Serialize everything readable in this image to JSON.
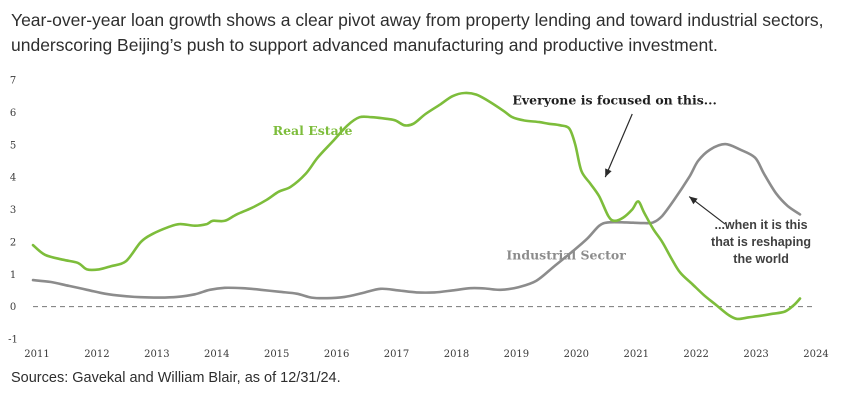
{
  "title_lines": [
    "Year-over-year loan growth shows a clear pivot away from property lending and toward industrial sectors,",
    "underscoring Beijing’s push to support advanced manufacturing and productive investment."
  ],
  "source": "Sources: Gavekal and William Blair, as of 12/31/24.",
  "colors": {
    "real_estate": "#7dbd3b",
    "industrial": "#8c8c8c",
    "zero_line": "#777777"
  },
  "chart_data": {
    "type": "line",
    "xlim": [
      2011,
      2024
    ],
    "ylim": [
      -1,
      7
    ],
    "x_ticks": [
      "2011",
      "2012",
      "2013",
      "2014",
      "2015",
      "2016",
      "2017",
      "2018",
      "2019",
      "2020",
      "2021",
      "2022",
      "2023",
      "2024"
    ],
    "y_ticks": [
      "7",
      "6",
      "5",
      "4",
      "3",
      "2",
      "1",
      "0",
      "-1"
    ],
    "zero_line": "dashed",
    "grid": false,
    "series": [
      {
        "name": "Real Estate",
        "points": [
          [
            2011.0,
            1.9
          ],
          [
            2011.2,
            1.6
          ],
          [
            2011.5,
            1.45
          ],
          [
            2011.75,
            1.35
          ],
          [
            2011.9,
            1.15
          ],
          [
            2012.1,
            1.15
          ],
          [
            2012.3,
            1.25
          ],
          [
            2012.55,
            1.4
          ],
          [
            2012.8,
            2.0
          ],
          [
            2013.0,
            2.25
          ],
          [
            2013.25,
            2.45
          ],
          [
            2013.45,
            2.55
          ],
          [
            2013.7,
            2.5
          ],
          [
            2013.9,
            2.55
          ],
          [
            2014.0,
            2.65
          ],
          [
            2014.2,
            2.65
          ],
          [
            2014.4,
            2.85
          ],
          [
            2014.65,
            3.05
          ],
          [
            2014.9,
            3.3
          ],
          [
            2015.1,
            3.55
          ],
          [
            2015.3,
            3.7
          ],
          [
            2015.55,
            4.1
          ],
          [
            2015.75,
            4.6
          ],
          [
            2016.0,
            5.1
          ],
          [
            2016.25,
            5.6
          ],
          [
            2016.45,
            5.85
          ],
          [
            2016.65,
            5.85
          ],
          [
            2016.9,
            5.8
          ],
          [
            2017.05,
            5.75
          ],
          [
            2017.2,
            5.6
          ],
          [
            2017.35,
            5.65
          ],
          [
            2017.55,
            5.95
          ],
          [
            2017.8,
            6.25
          ],
          [
            2018.0,
            6.5
          ],
          [
            2018.2,
            6.6
          ],
          [
            2018.4,
            6.55
          ],
          [
            2018.6,
            6.35
          ],
          [
            2018.85,
            6.05
          ],
          [
            2019.0,
            5.85
          ],
          [
            2019.2,
            5.75
          ],
          [
            2019.45,
            5.7
          ],
          [
            2019.6,
            5.65
          ],
          [
            2019.8,
            5.6
          ],
          [
            2019.95,
            5.5
          ],
          [
            2020.05,
            5.0
          ],
          [
            2020.15,
            4.2
          ],
          [
            2020.3,
            3.8
          ],
          [
            2020.45,
            3.4
          ],
          [
            2020.6,
            2.8
          ],
          [
            2020.7,
            2.65
          ],
          [
            2020.85,
            2.75
          ],
          [
            2021.0,
            3.0
          ],
          [
            2021.1,
            3.25
          ],
          [
            2021.2,
            2.9
          ],
          [
            2021.35,
            2.4
          ],
          [
            2021.5,
            2.0
          ],
          [
            2021.65,
            1.5
          ],
          [
            2021.8,
            1.05
          ],
          [
            2022.0,
            0.7
          ],
          [
            2022.2,
            0.35
          ],
          [
            2022.4,
            0.05
          ],
          [
            2022.6,
            -0.25
          ],
          [
            2022.75,
            -0.38
          ],
          [
            2022.95,
            -0.33
          ],
          [
            2023.15,
            -0.28
          ],
          [
            2023.35,
            -0.22
          ],
          [
            2023.55,
            -0.15
          ],
          [
            2023.7,
            0.05
          ],
          [
            2023.8,
            0.25
          ]
        ]
      },
      {
        "name": "Industrial Sector",
        "points": [
          [
            2011.0,
            0.82
          ],
          [
            2011.3,
            0.76
          ],
          [
            2011.6,
            0.64
          ],
          [
            2011.9,
            0.52
          ],
          [
            2012.2,
            0.4
          ],
          [
            2012.5,
            0.33
          ],
          [
            2012.8,
            0.29
          ],
          [
            2013.1,
            0.28
          ],
          [
            2013.4,
            0.3
          ],
          [
            2013.7,
            0.38
          ],
          [
            2013.95,
            0.52
          ],
          [
            2014.2,
            0.58
          ],
          [
            2014.5,
            0.57
          ],
          [
            2014.8,
            0.52
          ],
          [
            2015.1,
            0.46
          ],
          [
            2015.4,
            0.4
          ],
          [
            2015.65,
            0.28
          ],
          [
            2015.9,
            0.26
          ],
          [
            2016.2,
            0.3
          ],
          [
            2016.5,
            0.42
          ],
          [
            2016.8,
            0.55
          ],
          [
            2017.1,
            0.5
          ],
          [
            2017.4,
            0.44
          ],
          [
            2017.7,
            0.44
          ],
          [
            2018.0,
            0.5
          ],
          [
            2018.3,
            0.57
          ],
          [
            2018.55,
            0.56
          ],
          [
            2018.8,
            0.52
          ],
          [
            2019.1,
            0.6
          ],
          [
            2019.4,
            0.8
          ],
          [
            2019.7,
            1.25
          ],
          [
            2020.0,
            1.7
          ],
          [
            2020.25,
            2.1
          ],
          [
            2020.45,
            2.5
          ],
          [
            2020.6,
            2.6
          ],
          [
            2020.9,
            2.6
          ],
          [
            2021.2,
            2.58
          ],
          [
            2021.35,
            2.6
          ],
          [
            2021.5,
            2.8
          ],
          [
            2021.7,
            3.3
          ],
          [
            2021.95,
            4.0
          ],
          [
            2022.1,
            4.5
          ],
          [
            2022.3,
            4.85
          ],
          [
            2022.55,
            5.02
          ],
          [
            2022.8,
            4.85
          ],
          [
            2023.05,
            4.6
          ],
          [
            2023.2,
            4.1
          ],
          [
            2023.4,
            3.5
          ],
          [
            2023.6,
            3.1
          ],
          [
            2023.8,
            2.85
          ]
        ]
      }
    ],
    "annotations": [
      {
        "text": "Real Estate",
        "color": "#7dbd3b",
        "style": "serif-bold",
        "x": 2015.0,
        "y": 5.3
      },
      {
        "text": "Industrial Sector",
        "color": "#8c8c8c",
        "style": "serif-bold",
        "x": 2018.9,
        "y": 1.45
      },
      {
        "text": "Everyone is focused on this...",
        "color": "#1f1f1f",
        "style": "serif-bold",
        "x": 2019.0,
        "y": 6.25
      },
      {
        "lines": [
          "...when it is this",
          "that is reshaping",
          "the world"
        ],
        "color": "#404040",
        "style": "sans-bold",
        "x": 2023.15,
        "y": 2.4
      }
    ],
    "arrows": [
      {
        "from": [
          2021.0,
          5.95
        ],
        "to": [
          2020.55,
          4.0
        ]
      },
      {
        "from": [
          2022.55,
          2.55
        ],
        "to": [
          2021.95,
          3.4
        ]
      }
    ]
  }
}
